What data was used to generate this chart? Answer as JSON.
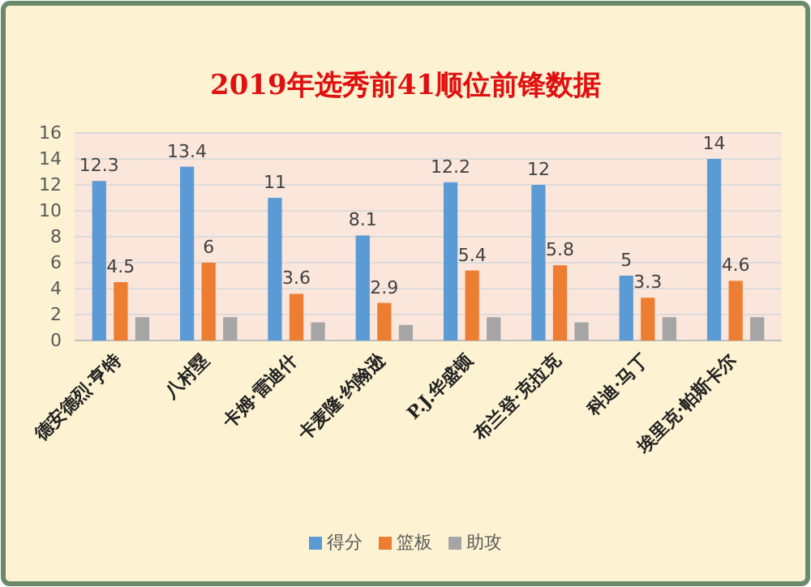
{
  "chart_data": {
    "type": "bar",
    "title": "2019年选秀前41顺位前锋数据",
    "categories": [
      "德安德烈·亨特",
      "八村塁",
      "卡姆·雷迪什",
      "卡麦隆·约翰逊",
      "P.J.华盛顿",
      "布兰登·克拉克",
      "科迪·马丁",
      "埃里克·帕斯卡尔"
    ],
    "series": [
      {
        "name": "得分",
        "color": "#5b9bd5",
        "values": [
          12.3,
          13.4,
          11,
          8.1,
          12.2,
          12,
          5,
          14
        ],
        "value_labels": [
          "12.3",
          "13.4",
          "11",
          "8.1",
          "12.2",
          "12",
          "5",
          "14"
        ]
      },
      {
        "name": "篮板",
        "color": "#ed7d31",
        "values": [
          4.5,
          6,
          3.6,
          2.9,
          5.4,
          5.8,
          3.3,
          4.6
        ],
        "value_labels": [
          "4.5",
          "6",
          "3.6",
          "2.9",
          "5.4",
          "5.8",
          "3.3",
          "4.6"
        ]
      },
      {
        "name": "助攻",
        "color": "#a5a5a5",
        "values": [
          1.8,
          1.8,
          1.4,
          1.2,
          1.8,
          1.4,
          1.8,
          1.8
        ]
      }
    ],
    "ylim": [
      0,
      16
    ],
    "yticks": [
      0,
      2,
      4,
      6,
      8,
      10,
      12,
      14,
      16
    ],
    "grid": "y",
    "legend": "bottom"
  }
}
